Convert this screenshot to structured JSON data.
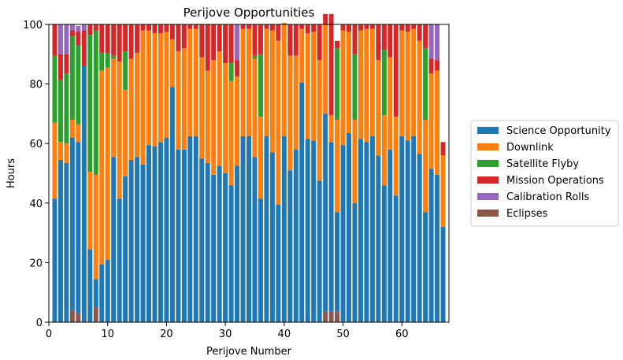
{
  "chart_data": {
    "type": "bar",
    "stacked": true,
    "title": "Perijove Opportunities",
    "xlabel": "Perijove Number",
    "ylabel": "Hours",
    "xlim": [
      0,
      68
    ],
    "ylim": [
      0,
      100
    ],
    "x_ticks": [
      0,
      10,
      20,
      30,
      40,
      50,
      60
    ],
    "y_ticks": [
      0,
      20,
      40,
      60,
      80,
      100
    ],
    "legend_position": "right",
    "grid": false,
    "x": [
      1,
      2,
      3,
      4,
      5,
      6,
      7,
      8,
      9,
      10,
      11,
      12,
      13,
      14,
      15,
      16,
      17,
      18,
      19,
      20,
      21,
      22,
      23,
      24,
      25,
      26,
      27,
      28,
      29,
      30,
      31,
      32,
      33,
      34,
      35,
      36,
      37,
      38,
      39,
      40,
      41,
      42,
      43,
      44,
      45,
      46,
      47,
      48,
      49,
      50,
      51,
      52,
      53,
      54,
      55,
      56,
      57,
      58,
      59,
      60,
      61,
      62,
      63,
      64,
      65,
      66,
      67
    ],
    "series": [
      {
        "name": "Eclipses",
        "color": "#8c564b",
        "values": [
          0,
          0,
          0,
          4,
          3,
          0,
          0,
          5,
          0,
          0,
          0,
          0,
          0,
          0,
          0,
          0,
          0,
          0,
          0,
          0,
          0,
          0,
          0,
          0,
          0,
          0,
          0,
          0,
          0,
          0,
          0,
          0,
          0,
          0,
          0,
          0,
          0,
          0,
          0,
          0,
          0,
          0,
          0,
          0,
          0,
          0,
          3.5,
          3.5,
          3.5,
          0,
          0,
          0,
          0,
          0,
          0,
          0,
          0,
          0,
          0,
          0,
          0,
          0,
          0,
          0,
          0,
          0,
          0
        ]
      },
      {
        "name": "Science Opportunity",
        "color": "#1f77b4",
        "values": [
          41.5,
          54.5,
          53.5,
          58,
          57.5,
          86,
          24.5,
          9.5,
          19.5,
          21,
          55.5,
          41.5,
          49,
          54.5,
          55.5,
          53,
          59.5,
          59,
          60.5,
          62,
          79,
          58,
          58,
          62.5,
          62.5,
          55,
          53.5,
          49.5,
          52.5,
          50,
          46,
          52.5,
          62.5,
          62.5,
          55.5,
          41.5,
          62.5,
          57,
          39.5,
          62.5,
          51,
          58,
          80.5,
          61.5,
          61,
          47.5,
          66.5,
          57,
          33.5,
          59.5,
          63.5,
          40,
          61.5,
          60.5,
          62.5,
          56,
          46,
          58,
          42.5,
          62.5,
          61,
          62.5,
          56.5,
          37,
          51.5,
          49.5,
          32
        ]
      },
      {
        "name": "Downlink",
        "color": "#ff7f0e",
        "values": [
          25.5,
          6,
          6.5,
          6,
          6,
          0,
          26,
          35,
          65,
          64.5,
          33,
          46,
          29,
          34,
          35,
          45,
          38.5,
          38,
          36.5,
          35.5,
          16,
          33,
          34,
          36,
          36,
          34,
          31,
          38.5,
          38.5,
          37,
          35,
          30,
          36,
          36,
          33,
          27.5,
          36,
          41,
          55,
          38,
          38.5,
          31.5,
          18,
          35.5,
          36.5,
          40.5,
          30,
          9,
          31,
          38.5,
          34,
          28,
          36.5,
          38,
          36,
          32,
          23.5,
          31,
          26.5,
          35.5,
          36.5,
          36,
          38,
          31,
          32,
          35,
          24
        ]
      },
      {
        "name": "Satellite Flyby",
        "color": "#2ca02c",
        "values": [
          22.5,
          21,
          23.5,
          28,
          26.5,
          0,
          46,
          48.5,
          6,
          5,
          1,
          0,
          13,
          0,
          0,
          0,
          0,
          0,
          0,
          0,
          0,
          0,
          0,
          0,
          0,
          0,
          0,
          0,
          0,
          0,
          6,
          0,
          0,
          0,
          1,
          21,
          0,
          0,
          0,
          0,
          0,
          0,
          0,
          0,
          0,
          0,
          0,
          0,
          24,
          0,
          0,
          22,
          0,
          0,
          0,
          0,
          22,
          0,
          0,
          0,
          0,
          0,
          0,
          24,
          0,
          0,
          0
        ]
      },
      {
        "name": "Mission Operations",
        "color": "#d62728",
        "values": [
          10.5,
          8.5,
          6.5,
          2,
          4.5,
          12,
          3.5,
          2,
          9.5,
          9.5,
          10.5,
          12.5,
          9,
          11.5,
          9.5,
          2,
          2,
          3,
          3,
          2.5,
          5,
          9,
          8,
          1.5,
          1.5,
          11,
          15.5,
          12,
          9,
          13,
          13,
          5.5,
          1.5,
          1.5,
          10.5,
          10,
          1.5,
          2,
          5.5,
          0,
          10.5,
          10.5,
          1.5,
          3,
          2.5,
          12,
          3.5,
          34,
          2.5,
          2,
          2.5,
          10,
          2,
          1.5,
          1.5,
          12,
          8.5,
          11,
          31,
          2,
          2.5,
          1.5,
          5.5,
          8,
          5,
          3.5,
          4.5
        ]
      },
      {
        "name": "Calibration Rolls",
        "color": "#9467bd",
        "values": [
          0,
          10,
          10,
          2,
          2,
          2,
          0,
          0,
          0,
          0,
          0,
          0,
          0,
          0,
          0,
          0,
          0,
          0,
          0,
          0,
          0,
          0,
          0,
          0,
          0,
          0,
          0,
          0,
          0,
          0,
          0,
          12,
          0,
          0,
          0,
          0,
          0,
          0,
          0,
          0,
          0,
          0,
          0,
          0,
          0,
          0,
          0,
          0,
          0,
          0,
          0,
          0,
          0,
          0,
          0,
          0,
          0,
          0,
          0,
          0,
          0,
          0,
          0,
          0,
          11.5,
          12,
          0
        ]
      }
    ],
    "legend": [
      "Science Opportunity",
      "Downlink",
      "Satellite Flyby",
      "Mission Operations",
      "Calibration Rolls",
      "Eclipses"
    ]
  }
}
